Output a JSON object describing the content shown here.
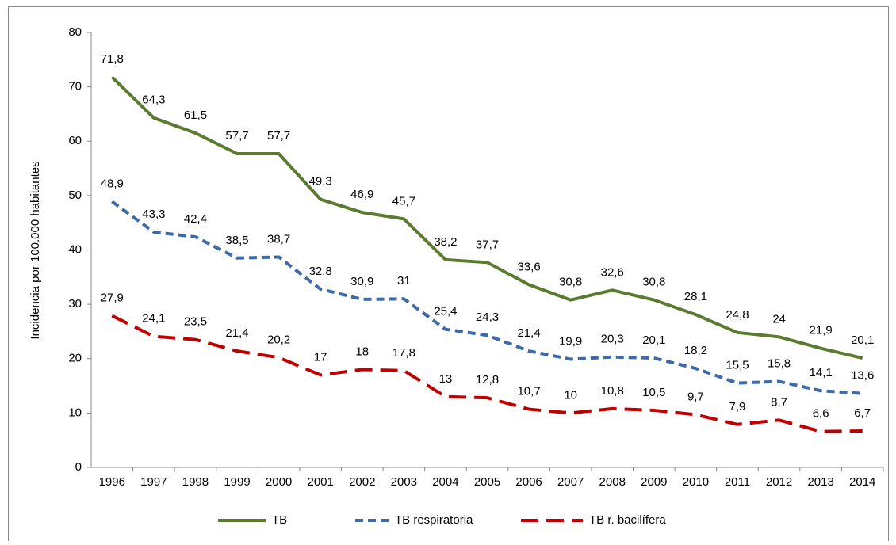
{
  "chart_data": {
    "type": "line",
    "y_label": "Incidencia por 100.000 habitantes",
    "categories": [
      "1996",
      "1997",
      "1998",
      "1999",
      "2000",
      "2001",
      "2002",
      "2003",
      "2004",
      "2005",
      "2006",
      "2007",
      "2008",
      "2009",
      "2010",
      "2011",
      "2012",
      "2013",
      "2014"
    ],
    "series": [
      {
        "name": "TB",
        "color": "#5b7b30",
        "dash": "solid",
        "values": [
          71.8,
          64.3,
          61.5,
          57.7,
          57.7,
          49.3,
          46.9,
          45.7,
          38.2,
          37.7,
          33.6,
          30.8,
          32.6,
          30.8,
          28.1,
          24.8,
          24,
          21.9,
          20.1
        ],
        "value_labels": [
          "71,8",
          "64,3",
          "61,5",
          "57,7",
          "57,7",
          "49,3",
          "46,9",
          "45,7",
          "38,2",
          "37,7",
          "33,6",
          "30,8",
          "32,6",
          "30,8",
          "28,1",
          "24,8",
          "24",
          "21,9",
          "20,1"
        ]
      },
      {
        "name": "TB respiratoria",
        "color": "#3e6aa8",
        "dash": "short",
        "values": [
          48.9,
          43.3,
          42.4,
          38.5,
          38.7,
          32.8,
          30.9,
          31,
          25.4,
          24.3,
          21.4,
          19.9,
          20.3,
          20.1,
          18.2,
          15.5,
          15.8,
          14.1,
          13.6
        ],
        "value_labels": [
          "48,9",
          "43,3",
          "42,4",
          "38,5",
          "38,7",
          "32,8",
          "30,9",
          "31",
          "25,4",
          "24,3",
          "21,4",
          "19,9",
          "20,3",
          "20,1",
          "18,2",
          "15,5",
          "15,8",
          "14,1",
          "13,6"
        ]
      },
      {
        "name": "TB r. bacilífera",
        "color": "#c00000",
        "dash": "long",
        "values": [
          27.9,
          24.1,
          23.5,
          21.4,
          20.2,
          17,
          18,
          17.8,
          13,
          12.8,
          10.7,
          10,
          10.8,
          10.5,
          9.7,
          7.9,
          8.7,
          6.6,
          6.7
        ],
        "value_labels": [
          "27,9",
          "24,1",
          "23,5",
          "21,4",
          "20,2",
          "17",
          "18",
          "17,8",
          "13",
          "12,8",
          "10,7",
          "10",
          "10,8",
          "10,5",
          "9,7",
          "7,9",
          "8,7",
          "6,6",
          "6,7"
        ]
      }
    ],
    "ylim": [
      0,
      80
    ],
    "yticks": [
      0,
      10,
      20,
      30,
      40,
      50,
      60,
      70,
      80
    ],
    "grid": false,
    "legend": "bottom"
  }
}
